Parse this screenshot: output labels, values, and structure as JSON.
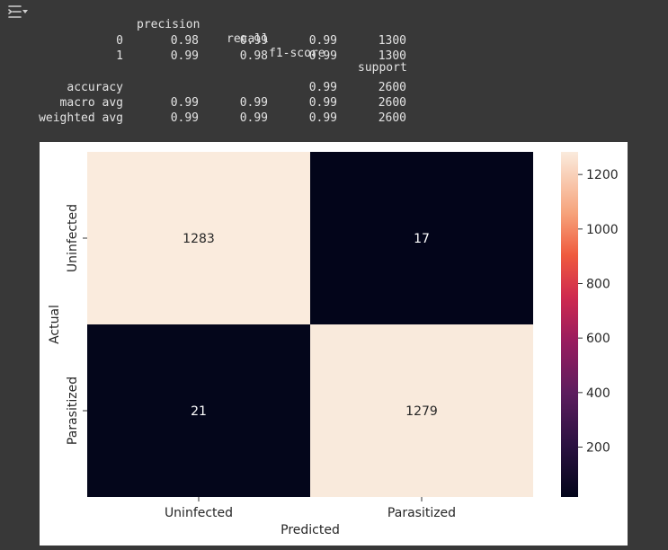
{
  "output_toggle_icon": "collapse-output-icon",
  "report": {
    "headers": [
      "precision",
      "recall",
      "f1-score",
      "support"
    ],
    "rows": [
      {
        "label": "0",
        "precision": "0.98",
        "recall": "0.99",
        "f1": "0.99",
        "support": "1300"
      },
      {
        "label": "1",
        "precision": "0.99",
        "recall": "0.98",
        "f1": "0.99",
        "support": "1300"
      },
      {
        "label": "accuracy",
        "precision": "",
        "recall": "",
        "f1": "0.99",
        "support": "2600"
      },
      {
        "label": "macro avg",
        "precision": "0.99",
        "recall": "0.99",
        "f1": "0.99",
        "support": "2600"
      },
      {
        "label": "weighted avg",
        "precision": "0.99",
        "recall": "0.99",
        "f1": "0.99",
        "support": "2600"
      }
    ]
  },
  "chart_data": {
    "type": "heatmap",
    "title": "",
    "xlabel": "Predicted",
    "ylabel": "Actual",
    "x_categories": [
      "Uninfected",
      "Parasitized"
    ],
    "y_categories": [
      "Uninfected",
      "Parasitized"
    ],
    "values": [
      [
        1283,
        17
      ],
      [
        21,
        1279
      ]
    ],
    "colorbar": {
      "ticks": [
        200,
        400,
        600,
        800,
        1000,
        1200
      ],
      "vmin": 17,
      "vmax": 1283
    },
    "colors": {
      "low": "#03051a",
      "high": "#faebdd"
    }
  }
}
